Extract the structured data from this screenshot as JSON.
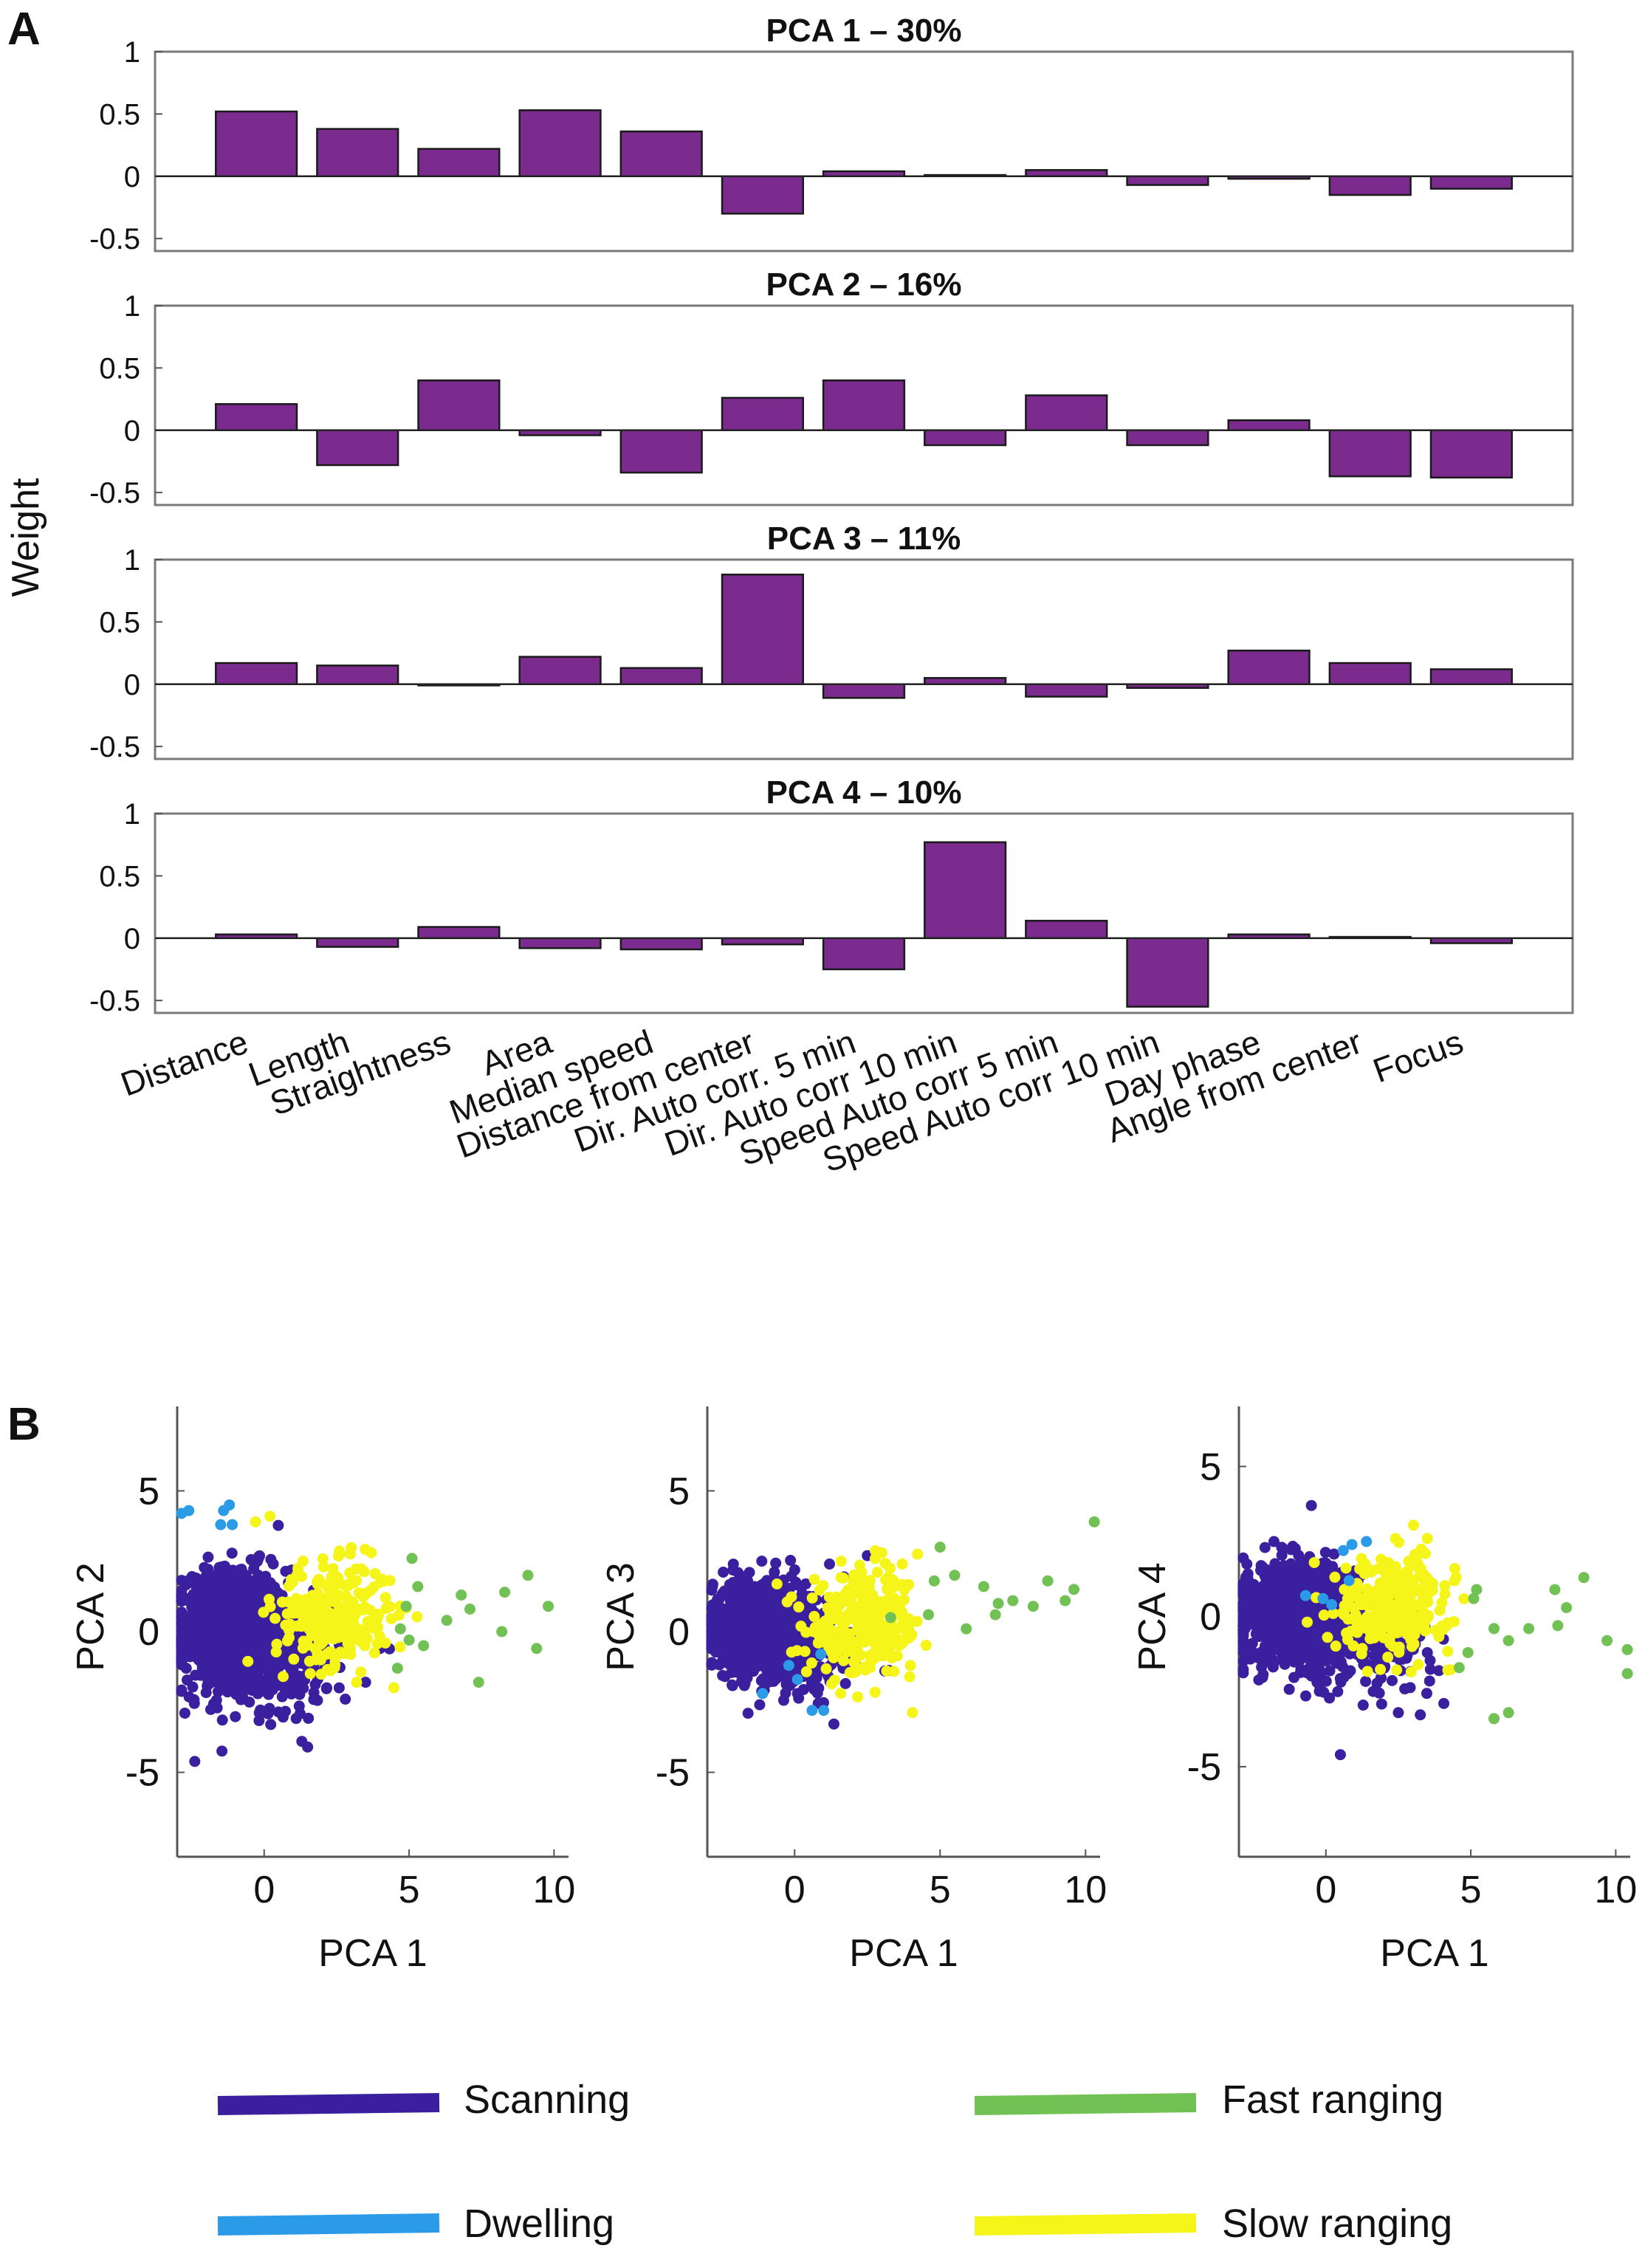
{
  "panel_labels": {
    "a": "A",
    "b": "B"
  },
  "colors": {
    "bar": "#7b2a8e",
    "scanning": "#3a1f9e",
    "dwelling": "#2b9be8",
    "fast_ranging": "#72c154",
    "slow_ranging": "#f5f51a"
  },
  "legend": {
    "scanning": "Scanning",
    "dwelling": "Dwelling",
    "fast_ranging": "Fast ranging",
    "slow_ranging": "Slow ranging"
  },
  "chart_data": [
    {
      "type": "bar",
      "title": "PCA 1 – 30%",
      "ylabel": "Weight",
      "ylim": [
        -0.6,
        1
      ],
      "yticks": [
        1,
        0.5,
        0,
        -0.5
      ],
      "ytick_labels": [
        "1",
        "0.5",
        "0",
        "-0.5"
      ],
      "categories": [
        "Distance",
        "Length",
        "Straightness",
        "Area",
        "Median speed",
        "Distance from center",
        "Dir. Auto corr. 5 min",
        "Dir. Auto corr 10 min",
        "Speed Auto corr 5 min",
        "Speed Auto corr 10 min",
        "Day phase",
        "Angle from center",
        "Focus"
      ],
      "values": [
        0.52,
        0.38,
        0.22,
        0.53,
        0.36,
        -0.3,
        0.04,
        0.01,
        0.05,
        -0.07,
        -0.02,
        -0.15,
        -0.1
      ]
    },
    {
      "type": "bar",
      "title": "PCA 2 – 16%",
      "ylabel": "Weight",
      "ylim": [
        -0.6,
        1
      ],
      "yticks": [
        1,
        0.5,
        0,
        -0.5
      ],
      "ytick_labels": [
        "1",
        "0.5",
        "0",
        "-0.5"
      ],
      "categories": [
        "Distance",
        "Length",
        "Straightness",
        "Area",
        "Median speed",
        "Distance from center",
        "Dir. Auto corr. 5 min",
        "Dir. Auto corr 10 min",
        "Speed Auto corr 5 min",
        "Speed Auto corr 10 min",
        "Day phase",
        "Angle from center",
        "Focus"
      ],
      "values": [
        0.21,
        -0.28,
        0.4,
        -0.04,
        -0.34,
        0.26,
        0.4,
        -0.12,
        0.28,
        -0.12,
        0.08,
        -0.37,
        -0.38
      ]
    },
    {
      "type": "bar",
      "title": "PCA 3 – 11%",
      "ylabel": "Weight",
      "ylim": [
        -0.6,
        1
      ],
      "yticks": [
        1,
        0.5,
        0,
        -0.5
      ],
      "ytick_labels": [
        "1",
        "0.5",
        "0",
        "-0.5"
      ],
      "categories": [
        "Distance",
        "Length",
        "Straightness",
        "Area",
        "Median speed",
        "Distance from center",
        "Dir. Auto corr. 5 min",
        "Dir. Auto corr 10 min",
        "Speed Auto corr 5 min",
        "Speed Auto corr 10 min",
        "Day phase",
        "Angle from center",
        "Focus"
      ],
      "values": [
        0.17,
        0.15,
        -0.01,
        0.22,
        0.13,
        0.88,
        -0.11,
        0.05,
        -0.1,
        -0.03,
        0.27,
        0.17,
        0.12
      ]
    },
    {
      "type": "bar",
      "title": "PCA 4 – 10%",
      "ylabel": "Weight",
      "ylim": [
        -0.6,
        1
      ],
      "yticks": [
        1,
        0.5,
        0,
        -0.5
      ],
      "ytick_labels": [
        "1",
        "0.5",
        "0",
        "-0.5"
      ],
      "categories": [
        "Distance",
        "Length",
        "Straightness",
        "Area",
        "Median speed",
        "Distance from center",
        "Dir. Auto corr. 5 min",
        "Dir. Auto corr 10 min",
        "Speed Auto corr 5 min",
        "Speed Auto corr 10 min",
        "Day phase",
        "Angle from center",
        "Focus"
      ],
      "values": [
        0.03,
        -0.07,
        0.09,
        -0.08,
        -0.09,
        -0.05,
        -0.25,
        0.77,
        0.14,
        -0.55,
        0.03,
        0.01,
        -0.04
      ]
    },
    {
      "type": "scatter",
      "xlabel": "PCA 1",
      "ylabel": "PCA 2",
      "xlim": [
        -3,
        10.5
      ],
      "ylim": [
        -8,
        8
      ],
      "xticks": [
        0,
        5,
        10
      ],
      "xtick_labels": [
        "0",
        "5",
        "10"
      ],
      "yticks": [
        5,
        0,
        -5
      ],
      "ytick_labels": [
        "5",
        "0",
        "-5"
      ],
      "series": [
        {
          "name": "Scanning",
          "clusters": [
            {
              "cx": -1.0,
              "cy": 0.0,
              "sx": 0.9,
              "sy": 1.1,
              "n": 1100
            },
            {
              "cx": 0.8,
              "cy": -1.0,
              "sx": 1.1,
              "sy": 0.9,
              "n": 180
            }
          ],
          "points": [
            [
              1.5,
              -4.1
            ],
            [
              1.3,
              -3.9
            ],
            [
              3.5,
              -1.8
            ],
            [
              4.0,
              -0.6
            ],
            [
              2.8,
              -2.4
            ],
            [
              -0.2,
              2.6
            ]
          ]
        },
        {
          "name": "Dwelling",
          "points": [
            [
              -2.6,
              4.3
            ],
            [
              -2.9,
              4.2
            ],
            [
              -1.4,
              4.3
            ],
            [
              -1.2,
              4.5
            ],
            [
              -1.1,
              3.8
            ],
            [
              -1.5,
              3.8
            ]
          ]
        },
        {
          "name": "Slow ranging",
          "clusters": [
            {
              "cx": 2.4,
              "cy": 0.6,
              "sx": 1.0,
              "sy": 0.9,
              "n": 280
            }
          ],
          "points": [
            [
              0.2,
              4.1
            ],
            [
              -0.3,
              3.9
            ],
            [
              3.7,
              2.8
            ]
          ]
        },
        {
          "name": "Fast ranging",
          "points": [
            [
              5.1,
              2.6
            ],
            [
              5.3,
              1.6
            ],
            [
              4.7,
              0.1
            ],
            [
              6.8,
              1.3
            ],
            [
              7.1,
              0.8
            ],
            [
              8.3,
              1.4
            ],
            [
              9.1,
              2.0
            ],
            [
              9.8,
              0.9
            ],
            [
              8.2,
              0.0
            ],
            [
              9.4,
              -0.6
            ],
            [
              7.4,
              -1.8
            ],
            [
              4.6,
              -1.3
            ],
            [
              5.0,
              -0.3
            ],
            [
              5.5,
              -0.5
            ],
            [
              6.3,
              0.4
            ],
            [
              4.9,
              0.9
            ]
          ]
        }
      ]
    },
    {
      "type": "scatter",
      "xlabel": "PCA 1",
      "ylabel": "PCA 3",
      "xlim": [
        -3,
        10.5
      ],
      "ylim": [
        -8,
        8
      ],
      "xticks": [
        0,
        5,
        10
      ],
      "xtick_labels": [
        "0",
        "5",
        "10"
      ],
      "yticks": [
        5,
        0,
        -5
      ],
      "ytick_labels": [
        "5",
        "0",
        "-5"
      ],
      "series": [
        {
          "name": "Scanning",
          "clusters": [
            {
              "cx": -1.2,
              "cy": 0.2,
              "sx": 0.8,
              "sy": 0.8,
              "n": 1100
            },
            {
              "cx": 0.3,
              "cy": -0.8,
              "sx": 1.2,
              "sy": 0.8,
              "n": 150
            }
          ],
          "points": [
            [
              -1.6,
              -2.9
            ],
            [
              -1.2,
              -2.6
            ],
            [
              0.1,
              -2.2
            ],
            [
              3.1,
              -1.4
            ],
            [
              2.5,
              2.7
            ],
            [
              1.2,
              2.4
            ]
          ]
        },
        {
          "name": "Dwelling",
          "points": [
            [
              -1.1,
              -2.2
            ],
            [
              0.6,
              -2.8
            ],
            [
              1.0,
              -2.8
            ],
            [
              0.1,
              -1.7
            ],
            [
              -0.2,
              -1.2
            ],
            [
              0.9,
              -0.8
            ]
          ]
        },
        {
          "name": "Slow ranging",
          "clusters": [
            {
              "cx": 2.4,
              "cy": 0.2,
              "sx": 1.0,
              "sy": 0.9,
              "n": 280
            }
          ],
          "points": [
            [
              3.0,
              2.8
            ],
            [
              1.6,
              2.5
            ],
            [
              3.7,
              2.4
            ]
          ]
        },
        {
          "name": "Fast ranging",
          "points": [
            [
              5.0,
              3.0
            ],
            [
              5.5,
              2.0
            ],
            [
              4.8,
              1.8
            ],
            [
              6.5,
              1.6
            ],
            [
              7.0,
              1.0
            ],
            [
              7.5,
              1.1
            ],
            [
              8.2,
              0.9
            ],
            [
              9.3,
              1.1
            ],
            [
              9.6,
              1.5
            ],
            [
              10.3,
              3.9
            ],
            [
              8.7,
              1.8
            ],
            [
              5.9,
              0.1
            ],
            [
              4.6,
              0.6
            ],
            [
              3.3,
              0.5
            ],
            [
              6.9,
              0.6
            ]
          ]
        }
      ]
    },
    {
      "type": "scatter",
      "xlabel": "PCA 1",
      "ylabel": "PCA 4",
      "xlim": [
        -3,
        10.5
      ],
      "ylim": [
        -8,
        7
      ],
      "xticks": [
        0,
        5,
        10
      ],
      "xtick_labels": [
        "0",
        "5",
        "10"
      ],
      "yticks": [
        5,
        0,
        -5
      ],
      "ytick_labels": [
        "5",
        "0",
        "-5"
      ],
      "series": [
        {
          "name": "Scanning",
          "clusters": [
            {
              "cx": -0.9,
              "cy": 0.1,
              "sx": 1.0,
              "sy": 0.8,
              "n": 1100
            },
            {
              "cx": 1.5,
              "cy": -0.9,
              "sx": 1.1,
              "sy": 0.8,
              "n": 150
            }
          ],
          "points": [
            [
              -0.5,
              3.7
            ],
            [
              0.5,
              -4.6
            ],
            [
              2.5,
              -3.2
            ],
            [
              -2.1,
              2.3
            ],
            [
              3.9,
              -1.8
            ],
            [
              3.5,
              -1.2
            ]
          ]
        },
        {
          "name": "Dwelling",
          "points": [
            [
              0.6,
              2.2
            ],
            [
              0.9,
              2.4
            ],
            [
              1.4,
              2.5
            ],
            [
              0.8,
              1.2
            ],
            [
              -0.7,
              0.7
            ],
            [
              -0.1,
              0.6
            ],
            [
              0.2,
              0.4
            ]
          ]
        },
        {
          "name": "Slow ranging",
          "clusters": [
            {
              "cx": 2.3,
              "cy": 0.4,
              "sx": 1.0,
              "sy": 0.8,
              "n": 280
            }
          ],
          "points": [
            [
              3.5,
              2.6
            ],
            [
              2.4,
              2.6
            ],
            [
              -0.4,
              1.8
            ]
          ]
        },
        {
          "name": "Fast ranging",
          "points": [
            [
              5.2,
              0.9
            ],
            [
              5.1,
              0.6
            ],
            [
              5.8,
              -0.4
            ],
            [
              4.6,
              -1.7
            ],
            [
              6.3,
              -0.8
            ],
            [
              7.0,
              -0.4
            ],
            [
              7.9,
              0.9
            ],
            [
              8.9,
              1.3
            ],
            [
              8.0,
              -0.3
            ],
            [
              9.7,
              -0.8
            ],
            [
              10.5,
              -1.1
            ],
            [
              10.6,
              -1.9
            ],
            [
              5.8,
              -3.4
            ],
            [
              6.3,
              -3.2
            ],
            [
              4.9,
              -1.2
            ],
            [
              8.3,
              0.3
            ]
          ]
        }
      ]
    }
  ]
}
